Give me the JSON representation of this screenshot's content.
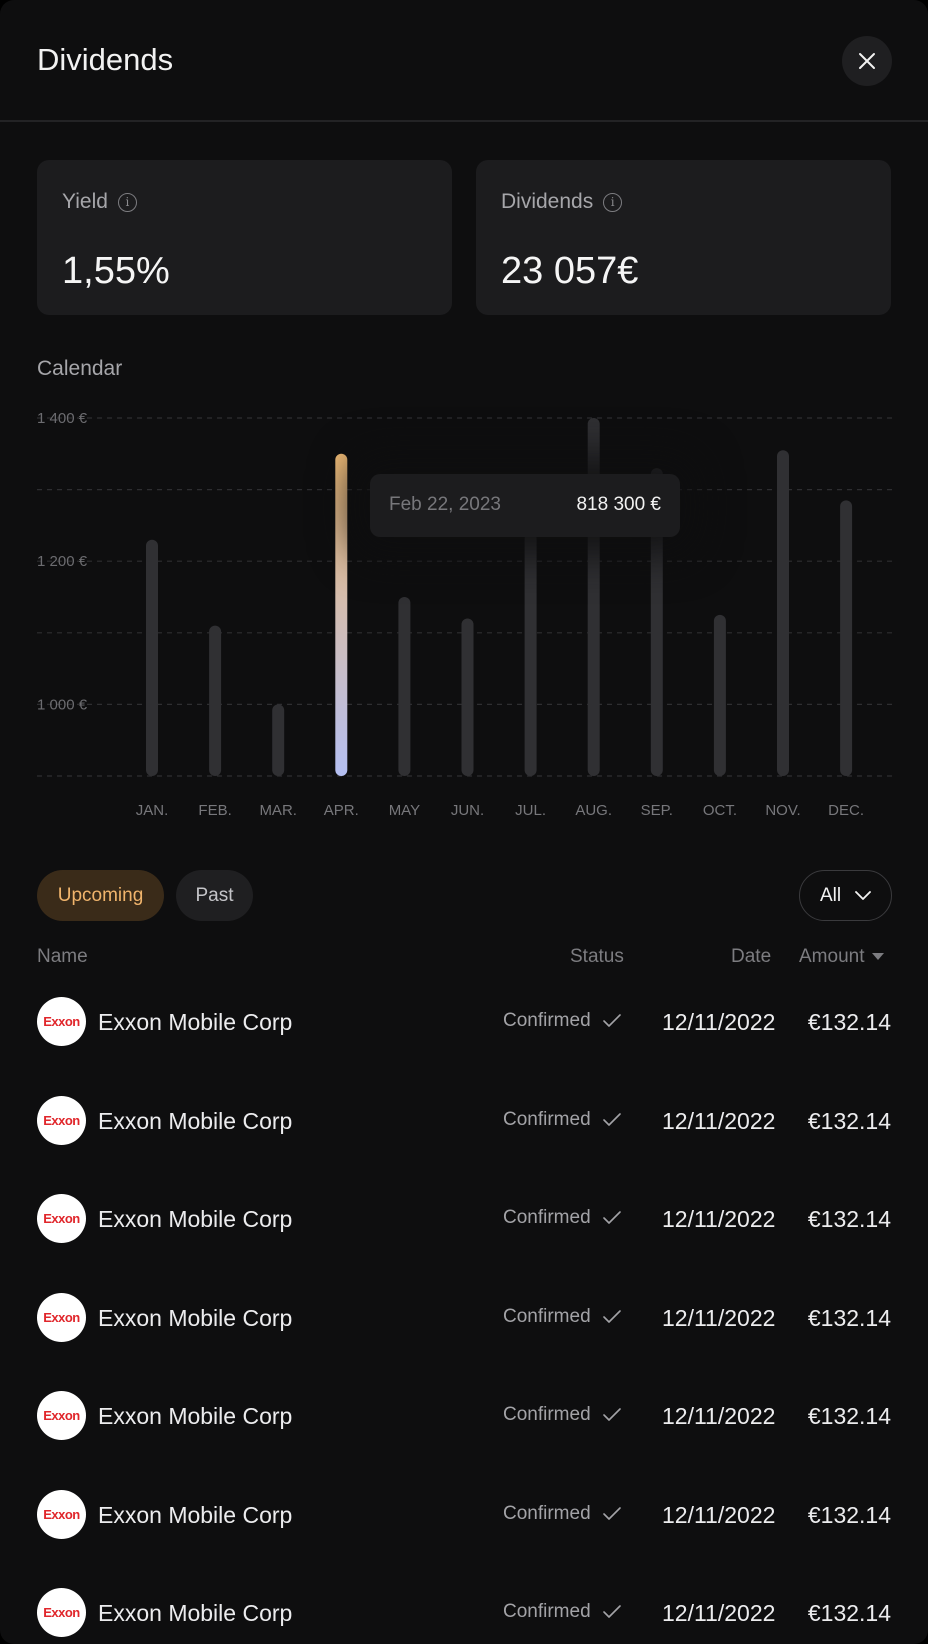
{
  "header": {
    "title": "Dividends",
    "close_icon": "close-icon"
  },
  "stats": {
    "yield": {
      "label": "Yield",
      "value": "1,55%",
      "icon": "info-icon"
    },
    "dividends": {
      "label": "Dividends",
      "value": "23 057€",
      "icon": "info-icon"
    }
  },
  "calendar": {
    "label": "Calendar",
    "tooltip": {
      "date": "Feb 22, 2023",
      "value": "818 300 €"
    }
  },
  "chart_data": {
    "type": "bar",
    "categories": [
      "JAN.",
      "FEB.",
      "MAR.",
      "APR.",
      "MAY",
      "JUN.",
      "JUL.",
      "AUG.",
      "SEP.",
      "OCT.",
      "NOV.",
      "DEC."
    ],
    "values": [
      1230,
      1110,
      1000,
      1350,
      1150,
      1120,
      1240,
      1400,
      1330,
      1125,
      1355,
      1285
    ],
    "ylim": [
      900,
      1400
    ],
    "yticks": [
      1000,
      1200,
      1400
    ],
    "ytick_labels": [
      "1 000 €",
      "1 200 €",
      "1 400 €"
    ],
    "highlight_index": 3,
    "grid": true,
    "colors": {
      "bar": "#303033",
      "highlight_top": "#f0bb75",
      "highlight_bottom": "#b4bff2",
      "grid": "#2e2e31"
    }
  },
  "tabs": [
    {
      "label": "Upcoming",
      "active": true
    },
    {
      "label": "Past",
      "active": false
    }
  ],
  "filter": {
    "value": "All",
    "icon": "chevron-down-icon"
  },
  "table": {
    "columns": {
      "name": "Name",
      "status": "Status",
      "date": "Date",
      "amount": "Amount"
    },
    "sort_icon": "sort-down-icon",
    "rows": [
      {
        "logo_text": "Exxon",
        "name": "Exxon Mobile Corp",
        "status": "Confirmed",
        "date": "12/11/2022",
        "amount": "€132.14"
      },
      {
        "logo_text": "Exxon",
        "name": "Exxon Mobile Corp",
        "status": "Confirmed",
        "date": "12/11/2022",
        "amount": "€132.14"
      },
      {
        "logo_text": "Exxon",
        "name": "Exxon Mobile Corp",
        "status": "Confirmed",
        "date": "12/11/2022",
        "amount": "€132.14"
      },
      {
        "logo_text": "Exxon",
        "name": "Exxon Mobile Corp",
        "status": "Confirmed",
        "date": "12/11/2022",
        "amount": "€132.14"
      },
      {
        "logo_text": "Exxon",
        "name": "Exxon Mobile Corp",
        "status": "Confirmed",
        "date": "12/11/2022",
        "amount": "€132.14"
      },
      {
        "logo_text": "Exxon",
        "name": "Exxon Mobile Corp",
        "status": "Confirmed",
        "date": "12/11/2022",
        "amount": "€132.14"
      },
      {
        "logo_text": "Exxon",
        "name": "Exxon Mobile Corp",
        "status": "Confirmed",
        "date": "12/11/2022",
        "amount": "€132.14"
      }
    ]
  }
}
